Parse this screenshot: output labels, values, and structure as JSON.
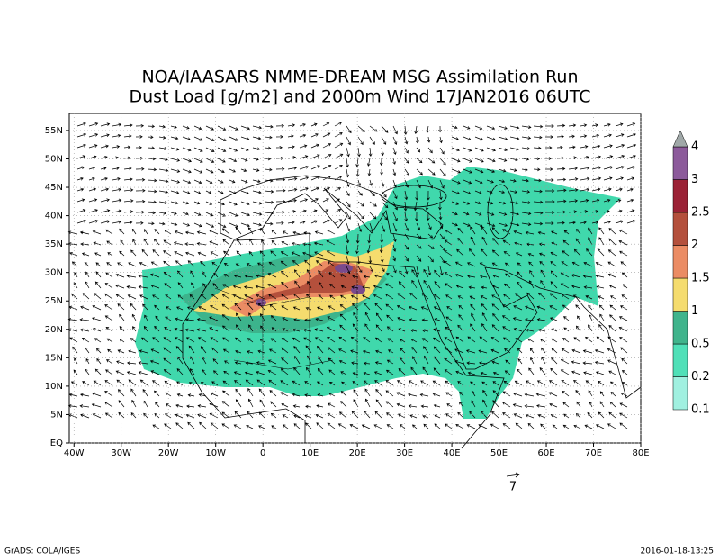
{
  "title": [
    "NOA/IAASARS NMME-DREAM MSG Assimilation Run",
    "Dust Load [g/m2] and 2000m Wind 17JAN2016 06UTC"
  ],
  "map": {
    "xlim": [
      -41,
      80
    ],
    "ylim": [
      0,
      58
    ],
    "xticks": [
      {
        "value": -40,
        "label": "40W"
      },
      {
        "value": -30,
        "label": "30W"
      },
      {
        "value": -20,
        "label": "20W"
      },
      {
        "value": -10,
        "label": "10W"
      },
      0,
      {
        "value": 10,
        "label": "10E"
      },
      {
        "value": 20,
        "label": "20E"
      },
      {
        "value": 30,
        "label": "30E"
      },
      {
        "value": 40,
        "label": "40E"
      },
      {
        "value": 50,
        "label": "50E"
      },
      {
        "value": 60,
        "label": "60E"
      },
      {
        "value": 70,
        "label": "70E"
      },
      {
        "value": 80,
        "label": "80E"
      }
    ],
    "yticks": [
      {
        "value": 0,
        "label": "EQ"
      },
      {
        "value": 5,
        "label": "5N"
      },
      {
        "value": 10,
        "label": "10N"
      },
      {
        "value": 15,
        "label": "15N"
      },
      {
        "value": 20,
        "label": "20N"
      },
      {
        "value": 25,
        "label": "25N"
      },
      {
        "value": 30,
        "label": "30N"
      },
      {
        "value": 35,
        "label": "35N"
      },
      {
        "value": 40,
        "label": "40N"
      },
      {
        "value": 45,
        "label": "45N"
      },
      {
        "value": 50,
        "label": "50N"
      },
      {
        "value": 55,
        "label": "55N"
      }
    ],
    "grid": true
  },
  "colorbar": {
    "levels": [
      0.1,
      0.2,
      0.5,
      1,
      1.5,
      2,
      2.5,
      3,
      4
    ],
    "colors": [
      "#a0f0e0",
      "#50e0b8",
      "#40b48c",
      "#f5dc6e",
      "#eb8c64",
      "#b4503c",
      "#9b2236",
      "#8c5a9b",
      "#a0a8a8"
    ]
  },
  "reference_vector": 7,
  "footer": {
    "left": "GrADS: COLA/IGES",
    "right": "2016-01-18-13:25"
  }
}
